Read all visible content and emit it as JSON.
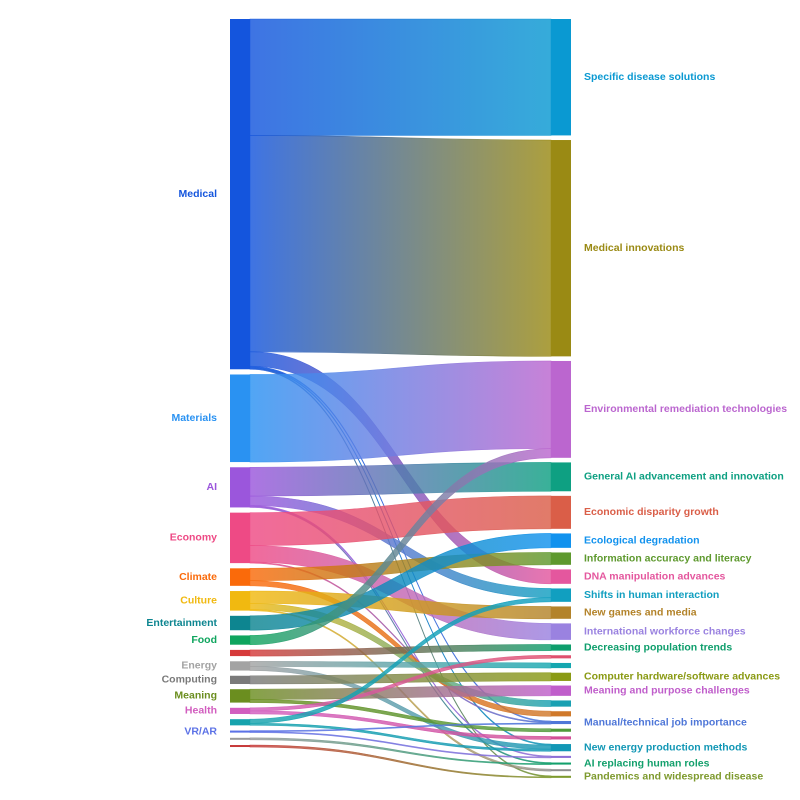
{
  "chart_data": {
    "type": "sankey",
    "sources": [
      {
        "id": "medical",
        "label": "Medical",
        "color": "#1455dd"
      },
      {
        "id": "materials",
        "label": "Materials",
        "color": "#2a92f2"
      },
      {
        "id": "ai",
        "label": "AI",
        "color": "#9b56dc"
      },
      {
        "id": "economy",
        "label": "Economy",
        "color": "#ee4a85"
      },
      {
        "id": "climate",
        "label": "Climate",
        "color": "#fa6a0a"
      },
      {
        "id": "culture",
        "label": "Culture",
        "color": "#f1b910"
      },
      {
        "id": "entertainment",
        "label": "Entertainment",
        "color": "#0d8590"
      },
      {
        "id": "food",
        "label": "Food",
        "color": "#0fa55e"
      },
      {
        "id": "src_red",
        "label": "",
        "color": "#d63a3a"
      },
      {
        "id": "energy",
        "label": "Energy",
        "color": "#a3a3a3"
      },
      {
        "id": "computing",
        "label": "Computing",
        "color": "#7a7a7a"
      },
      {
        "id": "meaning",
        "label": "Meaning",
        "color": "#6b8e1f"
      },
      {
        "id": "health",
        "label": "Health",
        "color": "#d25ebf"
      },
      {
        "id": "src_teal",
        "label": "",
        "color": "#16a3ad"
      },
      {
        "id": "vrar",
        "label": "VR/AR",
        "color": "#5c72e6"
      },
      {
        "id": "src_gray1",
        "label": "",
        "color": "#9a9a9a"
      },
      {
        "id": "src_red2",
        "label": "",
        "color": "#c73a3a"
      }
    ],
    "targets": [
      {
        "id": "specific",
        "label": "Specific disease solutions",
        "color": "#0a99d2"
      },
      {
        "id": "medinnov",
        "label": "Medical innovations",
        "color": "#9a8a14"
      },
      {
        "id": "envrem",
        "label": "Environmental remediation technologies",
        "color": "#bb66cf"
      },
      {
        "id": "genai",
        "label": "General AI advancement and innovation",
        "color": "#0ea082"
      },
      {
        "id": "econdisp",
        "label": "Economic disparity growth",
        "color": "#da5e48"
      },
      {
        "id": "ecodeg",
        "label": "Ecological degradation",
        "color": "#1192ee"
      },
      {
        "id": "infoacc",
        "label": "Information accuracy and literacy",
        "color": "#5e992e"
      },
      {
        "id": "dna",
        "label": "DNA manipulation advances",
        "color": "#e4579e"
      },
      {
        "id": "shifts",
        "label": "Shifts in human interaction",
        "color": "#119fc0"
      },
      {
        "id": "games",
        "label": "New games and media",
        "color": "#b3832a"
      },
      {
        "id": "intl",
        "label": "International workforce changes",
        "color": "#9a82e0"
      },
      {
        "id": "decpop",
        "label": "Decreasing population trends",
        "color": "#0e9e6c"
      },
      {
        "id": "t_red",
        "label": "",
        "color": "#e0506e"
      },
      {
        "id": "t_teal",
        "label": "",
        "color": "#15a7b0"
      },
      {
        "id": "comphw",
        "label": "Computer hardware/software advances",
        "color": "#8a9a14"
      },
      {
        "id": "meaningch",
        "label": "Meaning and purpose challenges",
        "color": "#c05ecb"
      },
      {
        "id": "t_teal2",
        "label": "",
        "color": "#19a0b2"
      },
      {
        "id": "t_orange",
        "label": "",
        "color": "#d0792a"
      },
      {
        "id": "manual",
        "label": "Manual/technical job importance",
        "color": "#4f77d8"
      },
      {
        "id": "t_green",
        "label": "",
        "color": "#4f9a3a"
      },
      {
        "id": "t_pink",
        "label": "",
        "color": "#d24f96"
      },
      {
        "id": "newenergy",
        "label": "New energy production methods",
        "color": "#1297b5"
      },
      {
        "id": "t_purple",
        "label": "",
        "color": "#8d6fd6"
      },
      {
        "id": "aireplace",
        "label": "AI replacing human roles",
        "color": "#13a06c"
      },
      {
        "id": "t_gray",
        "label": "",
        "color": "#8e8e8e"
      },
      {
        "id": "pandemics",
        "label": "Pandemics and widespread disease",
        "color": "#7e9a2e"
      }
    ],
    "links": [
      {
        "source": "medical",
        "target": "specific",
        "value": 113
      },
      {
        "source": "medical",
        "target": "medinnov",
        "value": 210
      },
      {
        "source": "medical",
        "target": "dna",
        "value": 14
      },
      {
        "source": "medical",
        "target": "manual",
        "value": 1
      },
      {
        "source": "medical",
        "target": "newenergy",
        "value": 1
      },
      {
        "source": "medical",
        "target": "pandemics",
        "value": 1
      },
      {
        "source": "materials",
        "target": "envrem",
        "value": 85
      },
      {
        "source": "ai",
        "target": "genai",
        "value": 28
      },
      {
        "source": "ai",
        "target": "shifts",
        "value": 9
      },
      {
        "source": "ai",
        "target": "t_purple",
        "value": 1
      },
      {
        "source": "ai",
        "target": "aireplace",
        "value": 1
      },
      {
        "source": "economy",
        "target": "econdisp",
        "value": 32
      },
      {
        "source": "economy",
        "target": "intl",
        "value": 16
      },
      {
        "source": "economy",
        "target": "manual",
        "value": 1
      },
      {
        "source": "climate",
        "target": "infoacc",
        "value": 12
      },
      {
        "source": "climate",
        "target": "t_orange",
        "value": 5
      },
      {
        "source": "culture",
        "target": "games",
        "value": 12
      },
      {
        "source": "culture",
        "target": "t_teal2",
        "value": 6
      },
      {
        "source": "culture",
        "target": "t_gray",
        "value": 1
      },
      {
        "source": "entertainment",
        "target": "ecodeg",
        "value": 14
      },
      {
        "source": "food",
        "target": "envrem",
        "value": 9
      },
      {
        "source": "src_red",
        "target": "decpop",
        "value": 6
      },
      {
        "source": "energy",
        "target": "t_teal",
        "value": 5
      },
      {
        "source": "energy",
        "target": "newenergy",
        "value": 4
      },
      {
        "source": "computing",
        "target": "comphw",
        "value": 8
      },
      {
        "source": "meaning",
        "target": "meaningch",
        "value": 10
      },
      {
        "source": "meaning",
        "target": "t_green",
        "value": 3
      },
      {
        "source": "health",
        "target": "t_red",
        "value": 3
      },
      {
        "source": "health",
        "target": "t_pink",
        "value": 3
      },
      {
        "source": "src_teal",
        "target": "shifts",
        "value": 4
      },
      {
        "source": "src_teal",
        "target": "newenergy",
        "value": 2
      },
      {
        "source": "vrar",
        "target": "manual",
        "value": 1
      },
      {
        "source": "vrar",
        "target": "t_purple",
        "value": 1
      },
      {
        "source": "src_gray1",
        "target": "aireplace",
        "value": 1
      },
      {
        "source": "src_red2",
        "target": "pandemics",
        "value": 1
      }
    ]
  }
}
